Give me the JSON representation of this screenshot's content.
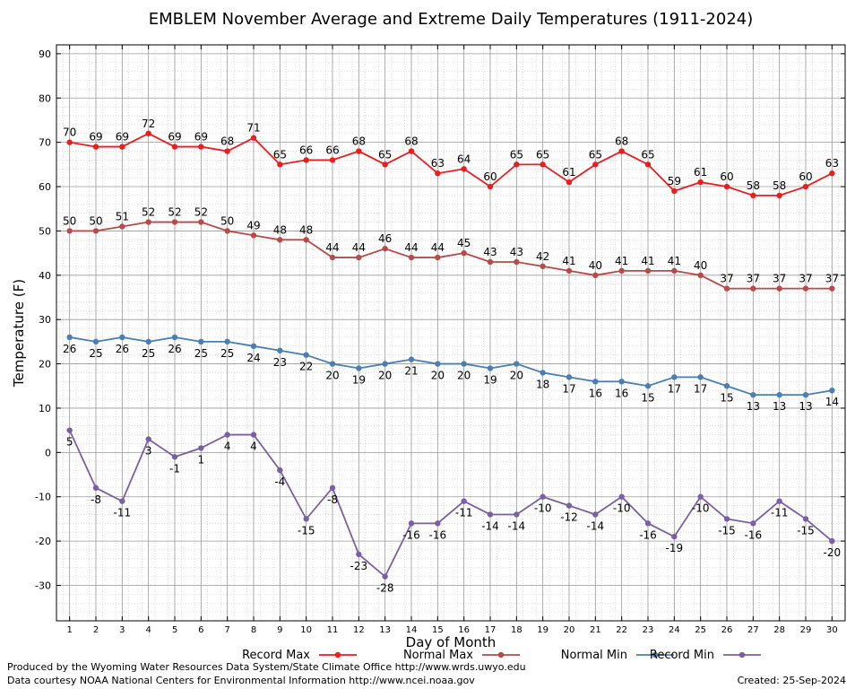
{
  "chart_data": {
    "type": "line",
    "title": "EMBLEM November Average and Extreme Daily Temperatures (1911-2024)",
    "xlabel": "Day of Month",
    "ylabel": "Temperature (F)",
    "ylim": [
      -38,
      92
    ],
    "yticks": [
      -30,
      -20,
      -10,
      0,
      10,
      20,
      30,
      40,
      50,
      60,
      70,
      80,
      90
    ],
    "xlim": [
      0.5,
      30.5
    ],
    "categories": [
      1,
      2,
      3,
      4,
      5,
      6,
      7,
      8,
      9,
      10,
      11,
      12,
      13,
      14,
      15,
      16,
      17,
      18,
      19,
      20,
      21,
      22,
      23,
      24,
      25,
      26,
      27,
      28,
      29,
      30
    ],
    "grid": true,
    "legend_position": "bottom",
    "series": [
      {
        "name": "Record Max",
        "color": "#ee1c1c",
        "values": [
          70,
          69,
          69,
          72,
          69,
          69,
          68,
          71,
          65,
          66,
          66,
          68,
          65,
          68,
          63,
          64,
          60,
          65,
          65,
          61,
          65,
          68,
          65,
          59,
          61,
          60,
          58,
          58,
          60,
          63
        ]
      },
      {
        "name": "Normal Max",
        "color": "#b94a48",
        "values": [
          50,
          50,
          51,
          52,
          52,
          52,
          50,
          49,
          48,
          48,
          44,
          44,
          46,
          44,
          44,
          45,
          43,
          43,
          42,
          41,
          40,
          41,
          41,
          41,
          40,
          37,
          37,
          37,
          37,
          37
        ]
      },
      {
        "name": "Normal Min",
        "color": "#4a7fb5",
        "values": [
          26,
          25,
          26,
          25,
          26,
          25,
          25,
          24,
          23,
          22,
          20,
          19,
          20,
          21,
          20,
          20,
          19,
          20,
          18,
          17,
          16,
          16,
          15,
          17,
          17,
          15,
          13,
          13,
          13,
          14
        ]
      },
      {
        "name": "Record Min",
        "color": "#7b5fa6",
        "values": [
          5,
          -8,
          -11,
          3,
          -1,
          1,
          4,
          4,
          -4,
          -15,
          -8,
          -23,
          -28,
          -16,
          -16,
          -11,
          -14,
          -14,
          -10,
          -12,
          -14,
          -10,
          -16,
          -19,
          -10,
          -15,
          -16,
          -11,
          -15,
          -20
        ]
      }
    ]
  },
  "footer": {
    "produced_by": "Produced by the Wyoming Water Resources Data System/State Climate Office http://www.wrds.uwyo.edu",
    "courtesy": "Data courtesy NOAA National Centers for Environmental Information http://www.ncei.noaa.gov",
    "created": "Created:  25-Sep-2024"
  }
}
